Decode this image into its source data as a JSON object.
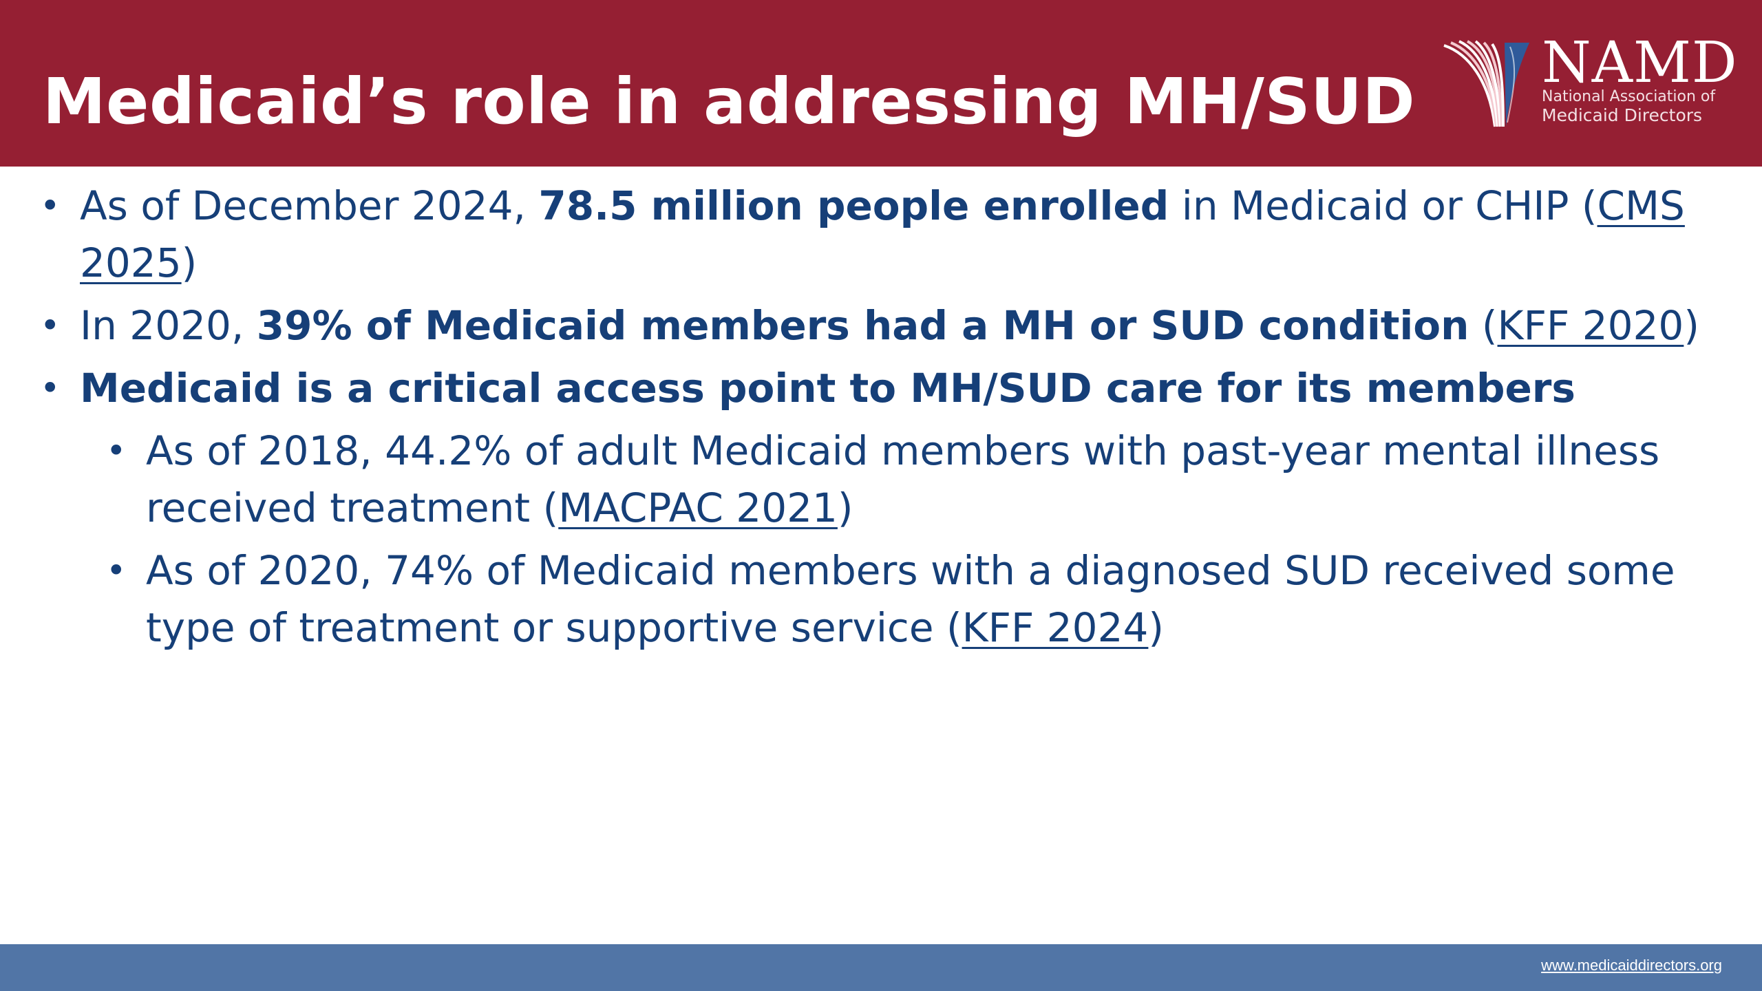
{
  "header": {
    "title": "Medicaid’s role in addressing MH/SUD",
    "background_color": "#951f33"
  },
  "logo": {
    "wordmark": "NAMD",
    "subtitle_line1": "National Association of",
    "subtitle_line2": "Medicaid Directors",
    "icon": "namd-fan-logo"
  },
  "bullets": [
    {
      "pre": "As of December 2024, ",
      "bold": "78.5 million people enrolled",
      "post": " in Medicaid or CHIP (",
      "link": "CMS 2025",
      "end": ")"
    },
    {
      "pre": "In 2020, ",
      "bold": "39% of Medicaid members had a MH or SUD condition",
      "post": " (",
      "link": "KFF 2020",
      "end": ")"
    },
    {
      "bold": "Medicaid is a critical access point to MH/SUD care for its members"
    }
  ],
  "sub_bullets": [
    {
      "pre": "As of 2018, 44.2% of adult Medicaid members with past-year mental illness received treatment (",
      "link": "MACPAC 2021",
      "end": ")"
    },
    {
      "pre": "As of 2020, 74% of Medicaid members with a diagnosed SUD received some type of treatment or supportive service (",
      "link": "KFF 2024",
      "end": ")"
    }
  ],
  "footer": {
    "url": "www.medicaiddirectors.org",
    "background_color": "#5175a6"
  },
  "colors": {
    "body_text": "#163f78",
    "header_text": "#ffffff"
  }
}
